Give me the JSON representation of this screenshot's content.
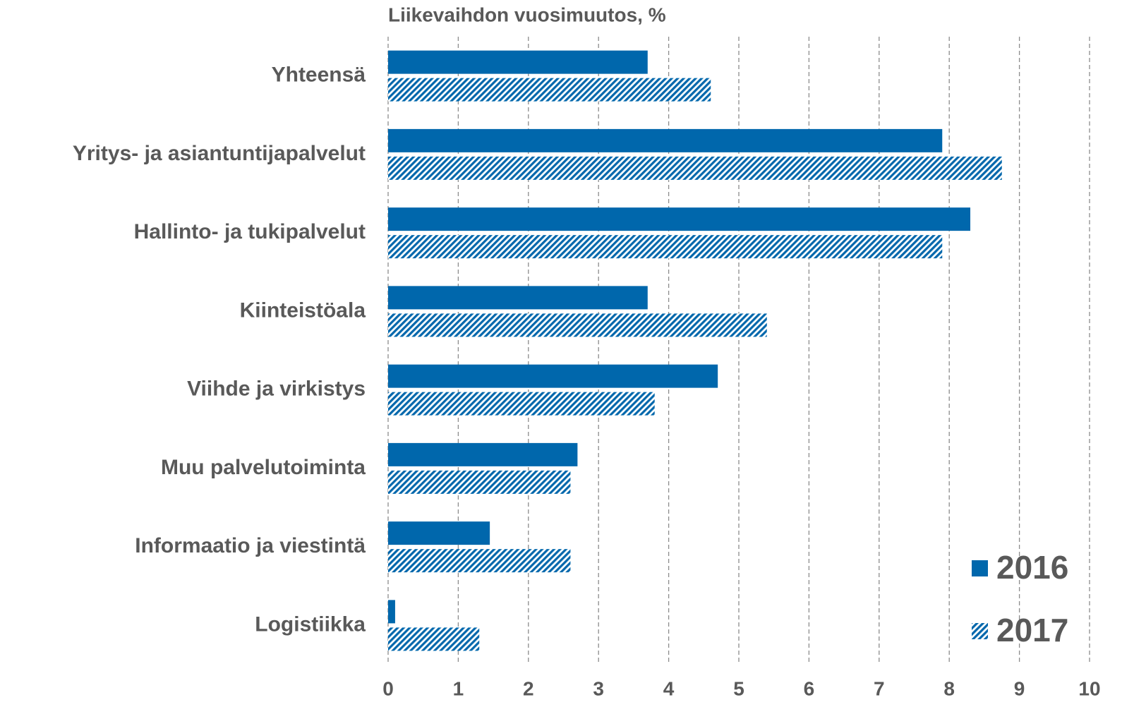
{
  "chart_data": {
    "type": "hbar",
    "title": "Liikevaihdon vuosimuutos, %",
    "categories": [
      "Yhteensä",
      "Yritys- ja asiantuntijapalvelut",
      "Hallinto- ja tukipalvelut",
      "Kiinteistöala",
      "Viihde ja virkistys",
      "Muu palvelutoiminta",
      "Informaatio ja viestintä",
      "Logistiikka"
    ],
    "series": [
      {
        "name": "2016",
        "color": "#0067ac",
        "hatch": false,
        "values": [
          3.7,
          7.9,
          8.3,
          3.7,
          4.7,
          2.7,
          1.45,
          0.1
        ]
      },
      {
        "name": "2017",
        "color": "#0067ac",
        "hatch": true,
        "values": [
          4.6,
          8.75,
          7.9,
          5.4,
          3.8,
          2.6,
          2.6,
          1.3
        ]
      }
    ],
    "xlim": [
      0,
      10
    ],
    "xticks": [
      0,
      1,
      2,
      3,
      4,
      5,
      6,
      7,
      8,
      9,
      10
    ],
    "grid": true,
    "legend": "bottom-right"
  }
}
